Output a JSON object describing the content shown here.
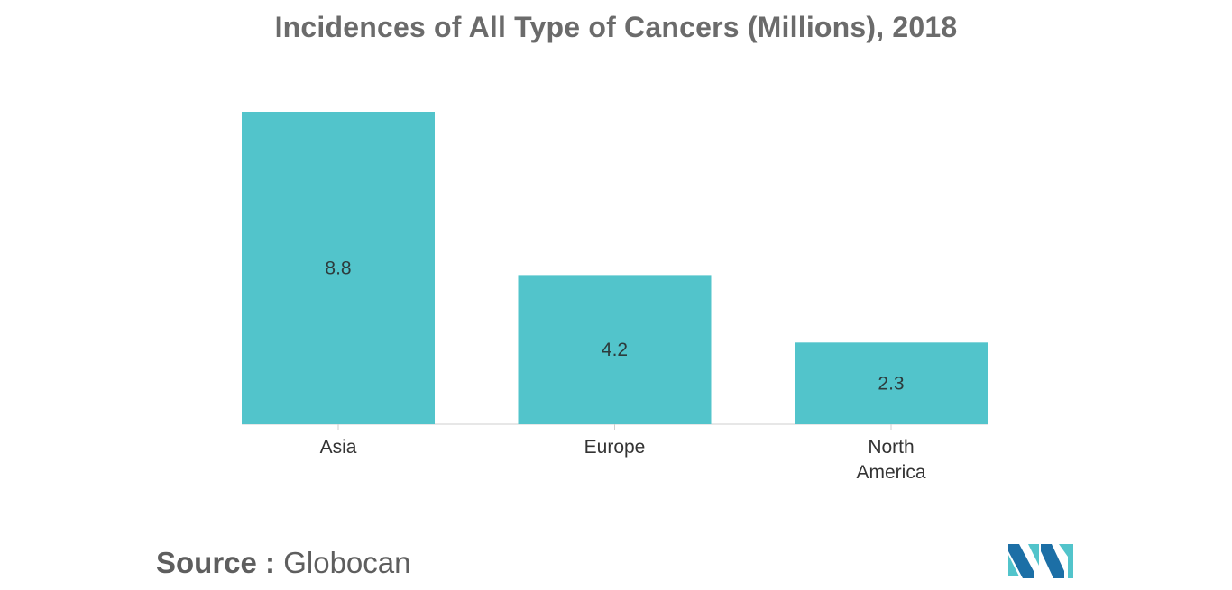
{
  "chart_data": {
    "type": "bar",
    "title": "Incidences of All Type of Cancers (Millions), 2018",
    "categories": [
      "Asia",
      "Europe",
      "North America"
    ],
    "category_lines": [
      [
        "Asia"
      ],
      [
        "Europe"
      ],
      [
        "North",
        "America"
      ]
    ],
    "values": [
      8.8,
      4.2,
      2.3
    ],
    "data_labels": [
      "8.8",
      "4.2",
      "2.3"
    ],
    "xlabel": "",
    "ylabel": "",
    "ylim": [
      0,
      8.8
    ],
    "grid": false,
    "legend": "none",
    "bar_color": "#52c4cb"
  },
  "source": {
    "label": "Source :",
    "value": "Globocan"
  },
  "logo": {
    "icon": "mordor-logo-icon",
    "colors": [
      "#1c6fa6",
      "#52c4cb"
    ]
  },
  "colors": {
    "title": "#6b6b6b",
    "tick_label": "#333333",
    "axis": "#cfcfcf"
  }
}
